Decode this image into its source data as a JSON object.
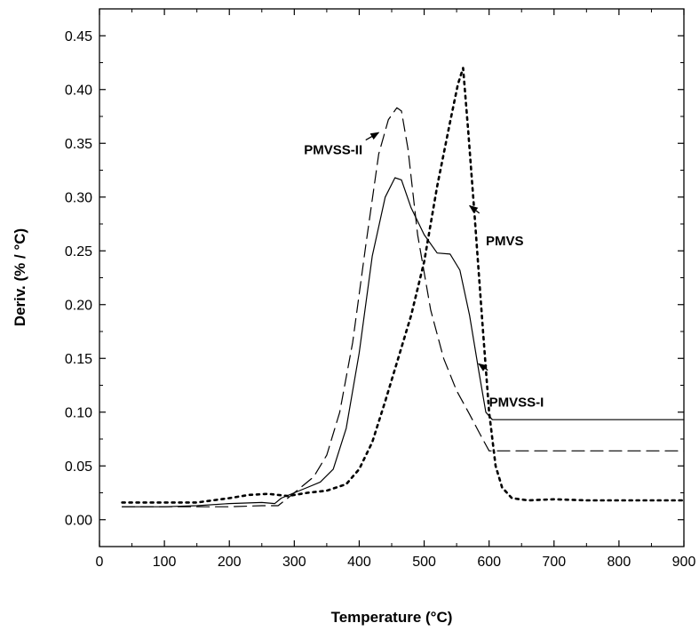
{
  "chart_data": {
    "type": "line",
    "title": "",
    "xlabel": "Temperature (°C)",
    "ylabel": "Deriv. (% / °C)",
    "xlim": [
      0,
      900
    ],
    "ylim": [
      -0.025,
      0.475
    ],
    "xticks": [
      0,
      100,
      200,
      300,
      400,
      500,
      600,
      700,
      800,
      900
    ],
    "yticks": [
      0.0,
      0.05,
      0.1,
      0.15,
      0.2,
      0.25,
      0.3,
      0.35,
      0.4,
      0.45
    ],
    "ytick_labels": [
      "0.00",
      "0.05",
      "0.10",
      "0.15",
      "0.20",
      "0.25",
      "0.30",
      "0.35",
      "0.40",
      "0.45"
    ],
    "grid": false,
    "series": [
      {
        "name": "PMVSS-I",
        "style": "solid",
        "color": "#000000",
        "x": [
          35,
          100,
          150,
          200,
          250,
          270,
          280,
          300,
          320,
          340,
          360,
          380,
          400,
          420,
          440,
          455,
          465,
          480,
          500,
          520,
          540,
          555,
          570,
          585,
          595,
          605,
          615,
          650,
          700,
          750,
          800,
          850,
          900
        ],
        "y": [
          0.012,
          0.012,
          0.013,
          0.015,
          0.016,
          0.015,
          0.02,
          0.025,
          0.03,
          0.035,
          0.047,
          0.085,
          0.155,
          0.245,
          0.3,
          0.318,
          0.316,
          0.29,
          0.265,
          0.248,
          0.247,
          0.232,
          0.19,
          0.135,
          0.1,
          0.093,
          0.093,
          0.093,
          0.093,
          0.093,
          0.093,
          0.093,
          0.093
        ]
      },
      {
        "name": "PMVSS-II",
        "style": "dashed",
        "color": "#000000",
        "x": [
          35,
          100,
          150,
          200,
          250,
          275,
          290,
          310,
          330,
          350,
          370,
          390,
          410,
          430,
          445,
          458,
          465,
          475,
          490,
          510,
          530,
          550,
          570,
          590,
          600,
          605,
          650,
          700,
          750,
          800,
          850,
          900
        ],
        "y": [
          0.012,
          0.012,
          0.012,
          0.012,
          0.013,
          0.013,
          0.02,
          0.03,
          0.04,
          0.06,
          0.1,
          0.165,
          0.255,
          0.34,
          0.372,
          0.383,
          0.38,
          0.345,
          0.265,
          0.195,
          0.15,
          0.12,
          0.098,
          0.075,
          0.064,
          0.064,
          0.064,
          0.064,
          0.064,
          0.064,
          0.064,
          0.064
        ]
      },
      {
        "name": "PMVS",
        "style": "dotted",
        "color": "#000000",
        "x": [
          35,
          100,
          150,
          200,
          230,
          260,
          290,
          320,
          350,
          380,
          400,
          420,
          440,
          460,
          480,
          500,
          520,
          540,
          552,
          560,
          568,
          578,
          590,
          600,
          610,
          620,
          635,
          660,
          700,
          750,
          800,
          850,
          900
        ],
        "y": [
          0.016,
          0.016,
          0.016,
          0.02,
          0.023,
          0.024,
          0.022,
          0.025,
          0.027,
          0.033,
          0.047,
          0.072,
          0.11,
          0.15,
          0.19,
          0.24,
          0.31,
          0.37,
          0.405,
          0.42,
          0.36,
          0.28,
          0.18,
          0.1,
          0.05,
          0.03,
          0.02,
          0.018,
          0.019,
          0.018,
          0.018,
          0.018,
          0.018
        ]
      }
    ],
    "annotations": [
      {
        "text": "PMVSS-II",
        "series": "PMVSS-II",
        "arrow_to": [
          430,
          0.36
        ],
        "arrow_from": [
          410,
          0.353
        ],
        "label_at": [
          315,
          0.34
        ]
      },
      {
        "text": "PMVS",
        "series": "PMVS",
        "arrow_to": [
          570,
          0.292
        ],
        "arrow_from": [
          585,
          0.285
        ],
        "label_at": [
          595,
          0.255
        ]
      },
      {
        "text": "PMVSS-I",
        "series": "PMVSS-I",
        "arrow_to": [
          584,
          0.145
        ],
        "arrow_from": [
          598,
          0.139
        ],
        "label_at": [
          600,
          0.105
        ]
      }
    ],
    "legend": "none"
  }
}
